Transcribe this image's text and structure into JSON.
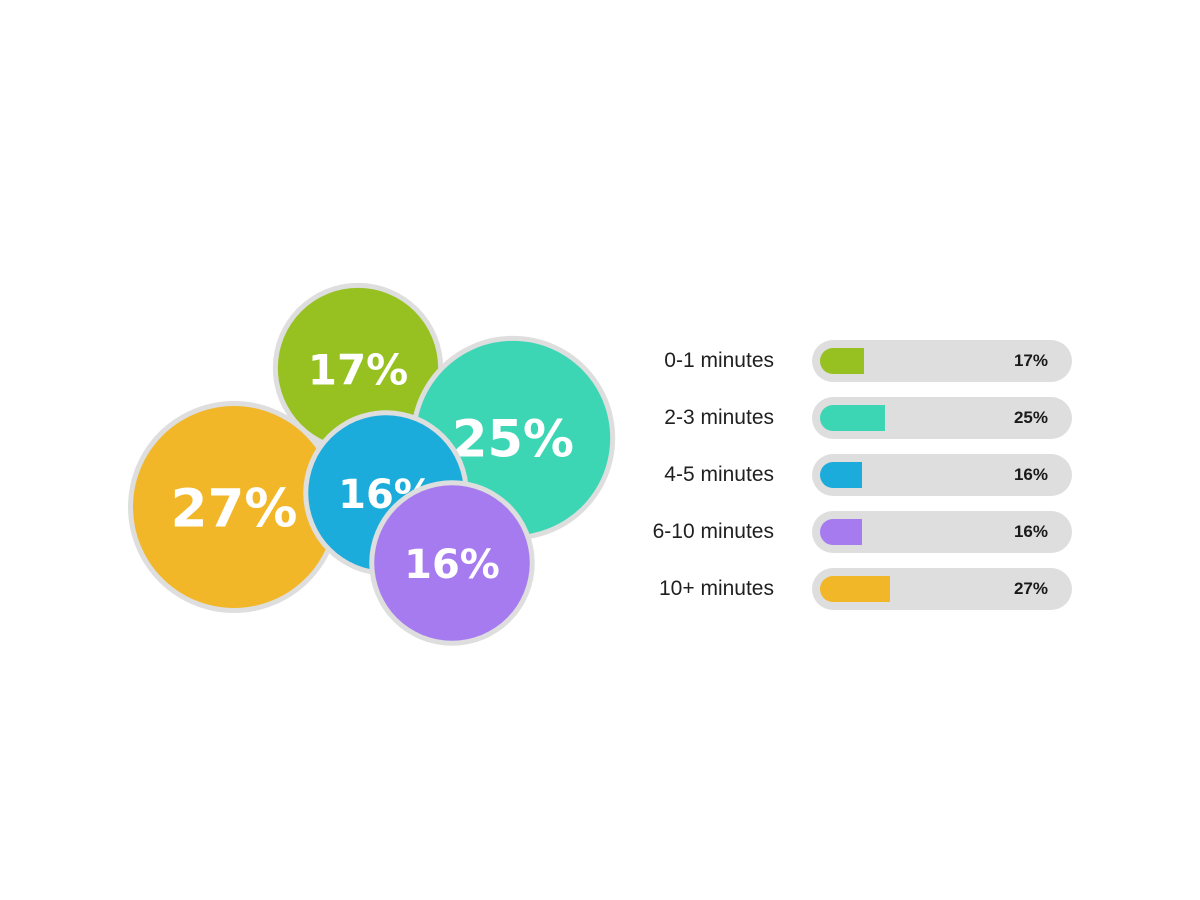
{
  "chart_data": {
    "type": "bubble",
    "categories": [
      "0-1 minutes",
      "2-3 minutes",
      "4-5 minutes",
      "6-10 minutes",
      "10+ minutes"
    ],
    "values": [
      17,
      25,
      16,
      16,
      27
    ],
    "value_labels": [
      "17%",
      "25%",
      "16%",
      "16%",
      "27%"
    ],
    "colors": [
      "#97c120",
      "#3dd6b5",
      "#1bacdc",
      "#a67bf0",
      "#f2b728"
    ],
    "title": "",
    "legend": "right"
  }
}
